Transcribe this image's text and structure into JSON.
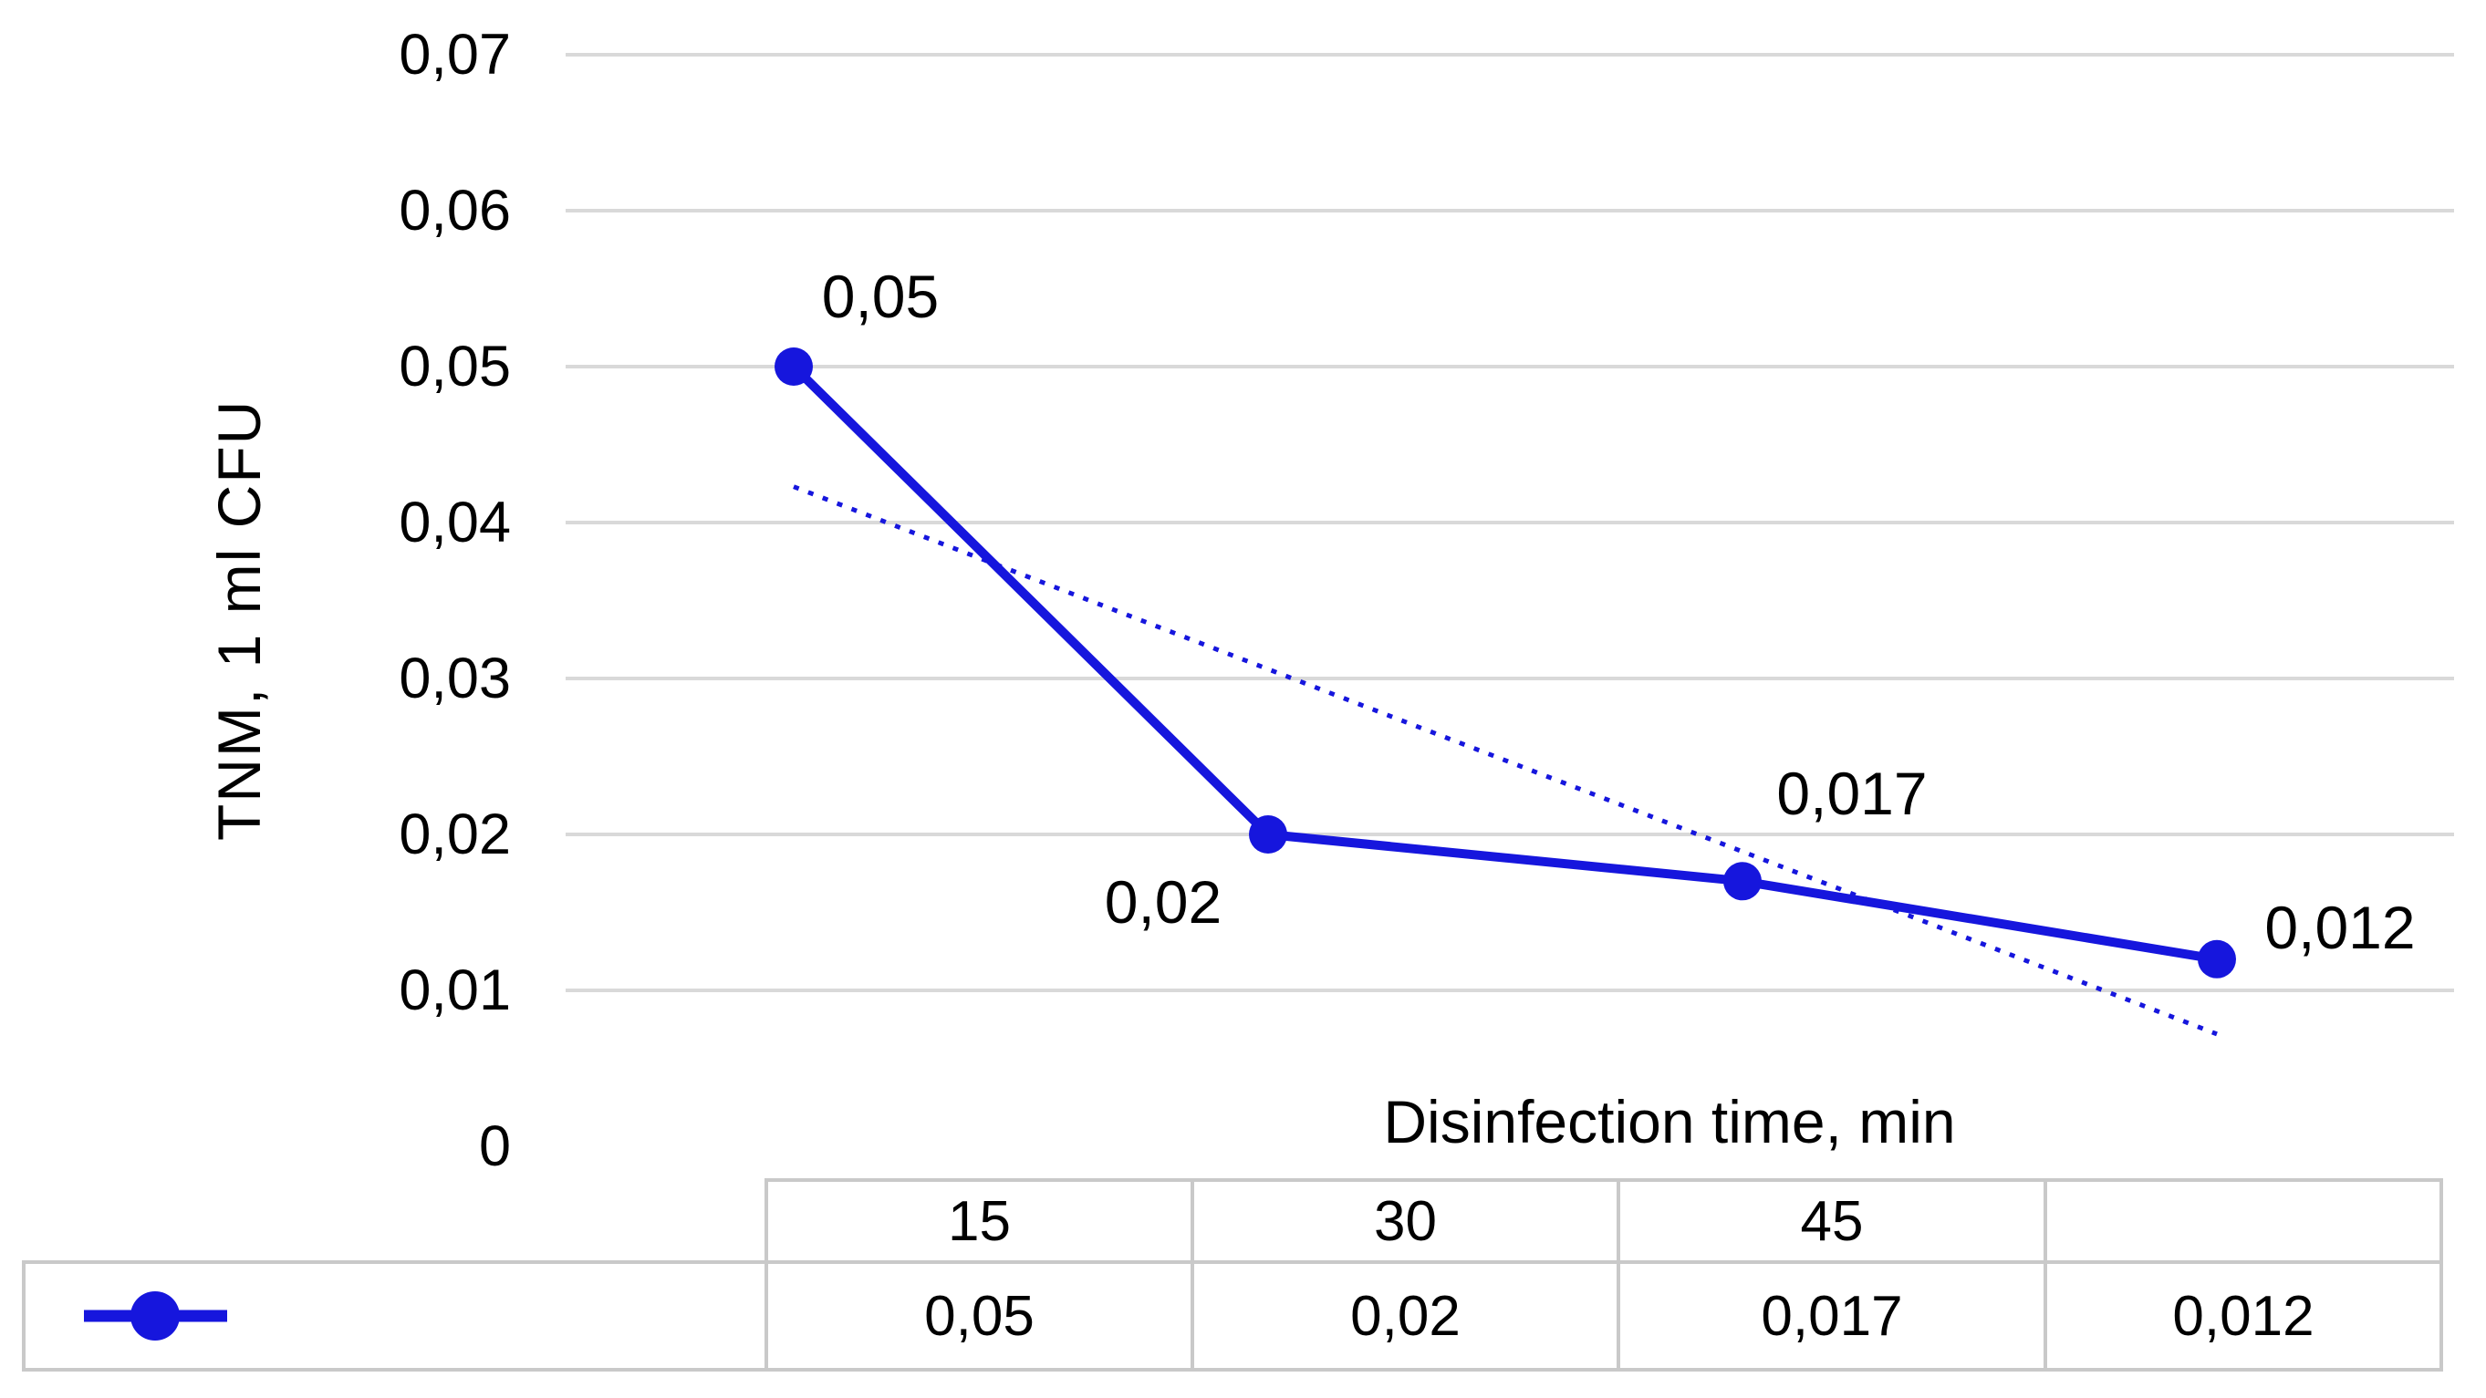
{
  "chart_data": {
    "type": "line",
    "title": "",
    "categories": [
      "15",
      "30",
      "45",
      ""
    ],
    "series": [
      {
        "name": "",
        "values": [
          0.05,
          0.02,
          0.017,
          0.012
        ]
      }
    ],
    "data_labels": [
      "0,05",
      "0,02",
      "0,017",
      "0,012"
    ],
    "xlabel": "Disinfection time, min",
    "ylabel": "TNM, 1 ml CFU",
    "y_ticks": [
      "0,07",
      "0,06",
      "0,05",
      "0,04",
      "0,03",
      "0,02",
      "0,01",
      "0"
    ],
    "y_tick_values": [
      0.07,
      0.06,
      0.05,
      0.04,
      0.03,
      0.02,
      0.01,
      0
    ],
    "ylim": [
      0,
      0.07
    ],
    "grid": "horizontal",
    "decimal_separator": ",",
    "series_color": "#1616dd",
    "gridline_color": "#d9d9d9",
    "trendline": {
      "type": "linear",
      "style": "dotted",
      "start_value": 0.0423,
      "end_value": 0.0072
    },
    "legend": {
      "position": "bottom-left",
      "symbol": "line-with-round-marker"
    }
  },
  "table": {
    "header_row": [
      "15",
      "30",
      "45",
      ""
    ],
    "value_row": [
      "0,05",
      "0,02",
      "0,017",
      "0,012"
    ]
  }
}
